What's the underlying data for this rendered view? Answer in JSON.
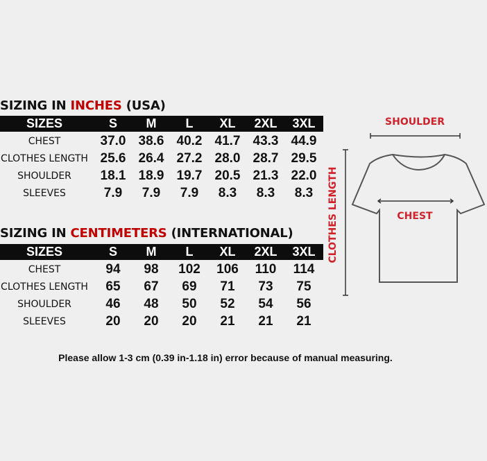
{
  "inches": {
    "title_prefix": "SIZING IN ",
    "title_unit": "INCHES",
    "title_suffix": " (USA)",
    "headers": [
      "SIZES",
      "S",
      "M",
      "L",
      "XL",
      "2XL",
      "3XL"
    ],
    "rows": [
      {
        "label": "CHEST",
        "values": [
          "37.0",
          "38.6",
          "40.2",
          "41.7",
          "43.3",
          "44.9"
        ]
      },
      {
        "label": "CLOTHES LENGTH",
        "values": [
          "25.6",
          "26.4",
          "27.2",
          "28.0",
          "28.7",
          "29.5"
        ]
      },
      {
        "label": "SHOULDER",
        "values": [
          "18.1",
          "18.9",
          "19.7",
          "20.5",
          "21.3",
          "22.0"
        ]
      },
      {
        "label": "SLEEVES",
        "values": [
          "7.9",
          "7.9",
          "7.9",
          "8.3",
          "8.3",
          "8.3"
        ]
      }
    ]
  },
  "centimeters": {
    "title_prefix": "SIZING IN ",
    "title_unit": "CENTIMETERS",
    "title_suffix": " (INTERNATIONAL)",
    "headers": [
      "SIZES",
      "S",
      "M",
      "L",
      "XL",
      "2XL",
      "3XL"
    ],
    "rows": [
      {
        "label": "CHEST",
        "values": [
          "94",
          "98",
          "102",
          "106",
          "110",
          "114"
        ]
      },
      {
        "label": "CLOTHES LENGTH",
        "values": [
          "65",
          "67",
          "69",
          "71",
          "73",
          "75"
        ]
      },
      {
        "label": "SHOULDER",
        "values": [
          "46",
          "48",
          "50",
          "52",
          "54",
          "56"
        ]
      },
      {
        "label": "SLEEVES",
        "values": [
          "20",
          "20",
          "20",
          "21",
          "21",
          "21"
        ]
      }
    ]
  },
  "diagram": {
    "shoulder_label": "SHOULDER",
    "chest_label": "CHEST",
    "length_label": "CLOTHES LENGTH",
    "accent_color": "#d0222a"
  },
  "note": "Please allow 1-3 cm (0.39 in-1.18 in) error because of manual measuring."
}
